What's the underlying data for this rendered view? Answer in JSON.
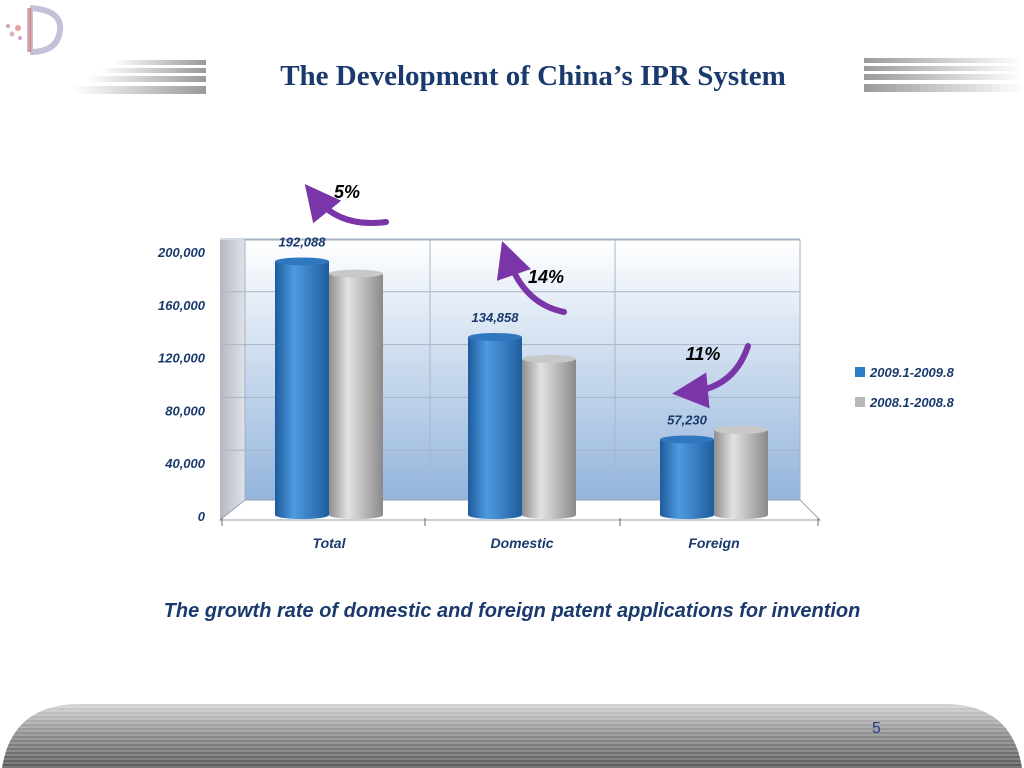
{
  "slide": {
    "title": "The Development of China’s IPR System",
    "caption": "The growth rate of domestic and foreign patent applications for invention",
    "page_number": "5"
  },
  "colors": {
    "title": "#1a3a6e",
    "series_2009": "#2e7cc4",
    "series_2008": "#b8b8b8",
    "arrow": "#7a35a8"
  },
  "chart_data": {
    "type": "bar",
    "categories": [
      "Total",
      "Domestic",
      "Foreign"
    ],
    "series": [
      {
        "name": "2009.1-2009.8",
        "values": [
          192088,
          134858,
          57230
        ]
      },
      {
        "name": "2008.1-2008.8",
        "values": [
          182900,
          118300,
          64500
        ]
      }
    ],
    "data_labels": [
      "192,088",
      "134,858",
      "57,230"
    ],
    "y_ticks": [
      "0",
      "40,000",
      "80,000",
      "120,000",
      "160,000",
      "200,000"
    ],
    "ylim": [
      0,
      200000
    ],
    "grid": true,
    "legend_position": "right",
    "growth_annotations": [
      "5%",
      "14%",
      "11%"
    ]
  }
}
